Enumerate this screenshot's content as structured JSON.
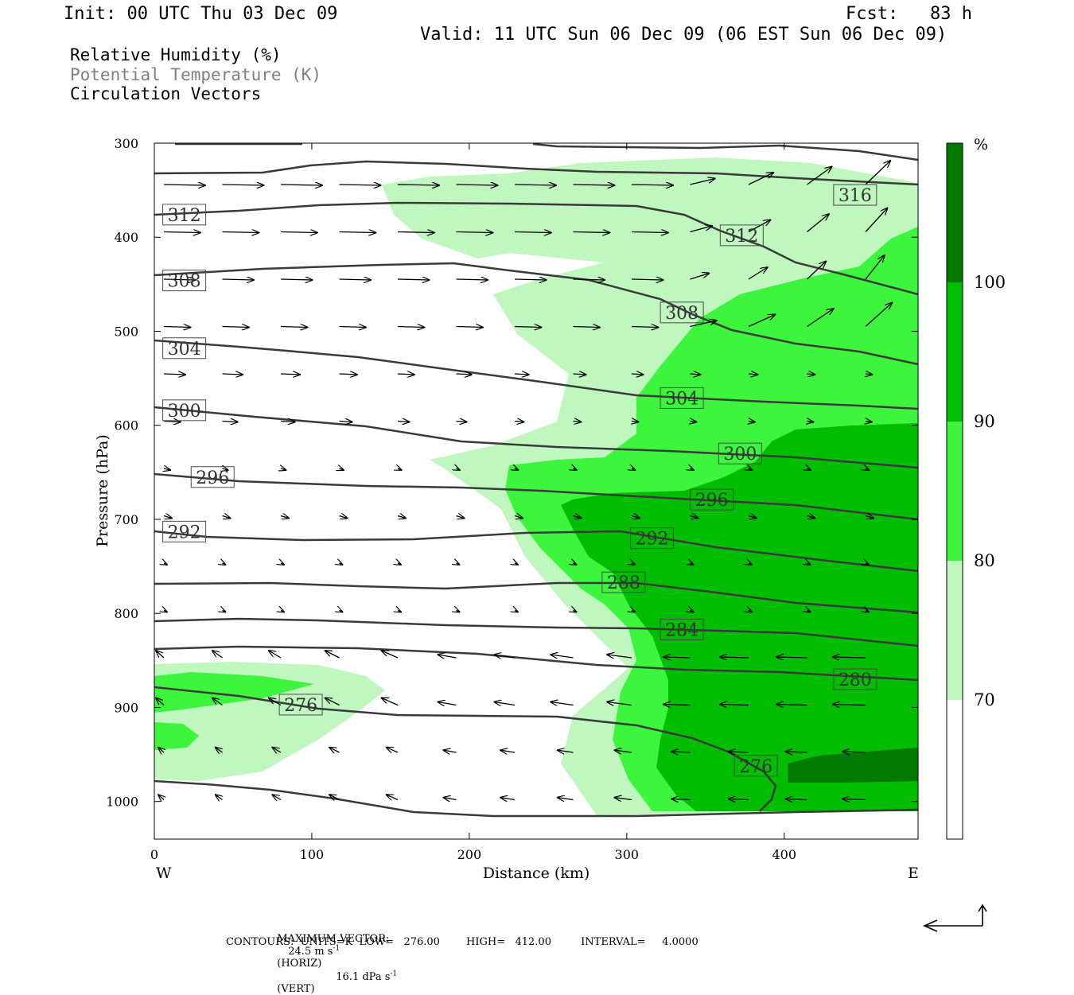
{
  "header": {
    "init": "Init: 00 UTC Thu 03 Dec 09",
    "fcst": "Fcst:   83 h",
    "valid": "Valid: 11 UTC Sun 06 Dec 09 (06 EST Sun 06 Dec 09)"
  },
  "fields": {
    "rh": "Relative Humidity (%)",
    "theta": "Potential Temperature (K)",
    "vectors": "Circulation Vectors"
  },
  "footer": {
    "max_vector_label": "MAXIMUM VECTOR:",
    "horiz": "24.5 m s",
    "horiz_exp": "-1",
    "horiz_tag": "(HORIZ)",
    "vert": "16.1 dPa s",
    "vert_exp": "-1",
    "vert_tag": "(VERT)",
    "contours": "CONTOURS:  UNITS=K  LOW=   276.00        HIGH=   412.00         INTERVAL=     4.0000"
  },
  "colors": {
    "rh_70_80": "#bff7bf",
    "rh_80_90": "#3df53d",
    "rh_90_100": "#00bd00",
    "rh_100": "#007a00",
    "contour": "#3a3a3a"
  },
  "chart_data": {
    "type": "cross-section",
    "xlabel": "Distance (km)",
    "ylabel": "Pressure (hPa)",
    "x_range": [
      0,
      485
    ],
    "y_range": [
      300,
      1040
    ],
    "y_scale": "linear, inverted",
    "x_ticks": [
      "0",
      "100",
      "200",
      "300",
      "400"
    ],
    "y_ticks": [
      "300",
      "400",
      "500",
      "600",
      "700",
      "800",
      "900",
      "1000"
    ],
    "side_labels": {
      "left": "W",
      "right": "E"
    },
    "colorbar": {
      "unit": "%",
      "levels": [
        "70",
        "80",
        "90",
        "100"
      ]
    },
    "theta_contour_labels": [
      {
        "value": "316",
        "x": 445,
        "p": 355
      },
      {
        "value": "312",
        "x": 19,
        "p": 376
      },
      {
        "value": "312",
        "x": 373,
        "p": 398
      },
      {
        "value": "308",
        "x": 19,
        "p": 446
      },
      {
        "value": "308",
        "x": 335,
        "p": 480
      },
      {
        "value": "304",
        "x": 19,
        "p": 518
      },
      {
        "value": "304",
        "x": 335,
        "p": 571
      },
      {
        "value": "300",
        "x": 19,
        "p": 584
      },
      {
        "value": "300",
        "x": 372,
        "p": 630
      },
      {
        "value": "296",
        "x": 37,
        "p": 655
      },
      {
        "value": "296",
        "x": 354,
        "p": 679
      },
      {
        "value": "292",
        "x": 19,
        "p": 713
      },
      {
        "value": "292",
        "x": 316,
        "p": 720
      },
      {
        "value": "288",
        "x": 298,
        "p": 767
      },
      {
        "value": "284",
        "x": 335,
        "p": 817
      },
      {
        "value": "280",
        "x": 445,
        "p": 870
      },
      {
        "value": "276",
        "x": 93,
        "p": 897
      },
      {
        "value": "276",
        "x": 382,
        "p": 962
      }
    ]
  }
}
